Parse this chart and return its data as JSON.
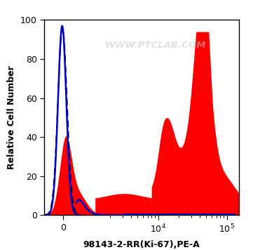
{
  "xlabel": "98143-2-RR(Ki-67),PE-A",
  "ylabel": "Relative Cell Number",
  "ylim": [
    0,
    100
  ],
  "yticks": [
    0,
    20,
    40,
    60,
    80,
    100
  ],
  "bg_color": "#ffffff",
  "plot_bg_color": "#ffffff",
  "red_fill_color": "#ff0000",
  "blue_line_color": "#0000cc",
  "black_dashed_color": "#000000",
  "watermark_text": "WWW.PTCLAB.COM",
  "watermark_color": "#c8c8c8",
  "watermark_alpha": 0.55,
  "symlog_linthresh": 1000,
  "symlog_linscale": 0.35,
  "xlim_left": -700,
  "xlim_right": 150000
}
